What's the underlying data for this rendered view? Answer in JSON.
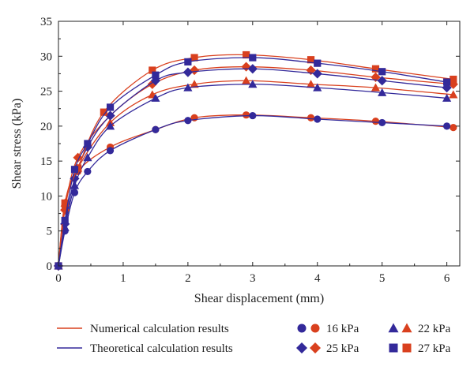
{
  "chart_data": {
    "type": "line",
    "xlabel": "Shear displacement (mm)",
    "ylabel": "Shear stress (kPa)",
    "xlim": [
      0,
      6.2
    ],
    "ylim": [
      0,
      35
    ],
    "xticks": [
      0,
      1,
      2,
      3,
      4,
      5,
      6
    ],
    "xtick_labels": [
      "0",
      "1",
      "2",
      "3",
      "4",
      "5",
      "6"
    ],
    "yticks": [
      0,
      5,
      10,
      15,
      20,
      25,
      30,
      35
    ],
    "ytick_labels": [
      "0",
      "5",
      "10",
      "15",
      "20",
      "25",
      "30",
      "35"
    ],
    "grid": false,
    "legend_placement": "bottom",
    "legend": {
      "numerical_label": "Numerical calculation results",
      "theoretical_label": "Theoretical calculation results",
      "loads": [
        {
          "label": "16 kPa",
          "marker": "circle"
        },
        {
          "label": "22 kPa",
          "marker": "triangle"
        },
        {
          "label": "25 kPa",
          "marker": "diamond"
        },
        {
          "label": "27 kPa",
          "marker": "square"
        }
      ]
    },
    "colors": {
      "numerical": "#d9401e",
      "theoretical": "#33299a"
    },
    "series": [
      {
        "name": "Numerical calculation results 16 kPa",
        "load": "16 kPa",
        "method": "numerical",
        "marker": "circle",
        "x": [
          0,
          0.1,
          0.3,
          0.8,
          1.5,
          2.1,
          2.9,
          3.9,
          4.9,
          6.1
        ],
        "y": [
          0,
          8.5,
          13.5,
          17.0,
          19.5,
          21.2,
          21.6,
          21.2,
          20.7,
          19.8
        ]
      },
      {
        "name": "Theoretical calculation results 16 kPa",
        "load": "16 kPa",
        "method": "theoretical",
        "marker": "circle",
        "x": [
          0,
          0.1,
          0.25,
          0.45,
          0.8,
          1.5,
          2.0,
          3.0,
          4.0,
          5.0,
          6.0
        ],
        "y": [
          0,
          5.0,
          10.5,
          13.5,
          16.5,
          19.5,
          20.8,
          21.5,
          21.0,
          20.5,
          20.0
        ]
      },
      {
        "name": "Numerical calculation results 22 kPa",
        "load": "22 kPa",
        "method": "numerical",
        "marker": "triangle",
        "x": [
          0,
          0.1,
          0.3,
          0.8,
          1.45,
          2.1,
          2.9,
          3.9,
          4.9,
          6.1
        ],
        "y": [
          0,
          9.0,
          14.0,
          20.5,
          24.5,
          26.0,
          26.5,
          26.0,
          25.5,
          24.5
        ]
      },
      {
        "name": "Theoretical calculation results 22 kPa",
        "load": "22 kPa",
        "method": "theoretical",
        "marker": "triangle",
        "x": [
          0,
          0.1,
          0.25,
          0.45,
          0.8,
          1.5,
          2.0,
          3.0,
          4.0,
          5.0,
          6.0
        ],
        "y": [
          0,
          5.5,
          11.5,
          15.5,
          20.0,
          24.0,
          25.5,
          26.0,
          25.5,
          24.8,
          24.0
        ]
      },
      {
        "name": "Numerical calculation results 25 kPa",
        "load": "25 kPa",
        "method": "numerical",
        "marker": "diamond",
        "x": [
          0,
          0.1,
          0.3,
          0.8,
          1.45,
          2.1,
          2.9,
          3.9,
          4.9,
          6.1
        ],
        "y": [
          0,
          8.0,
          15.5,
          21.5,
          26.0,
          28.0,
          28.5,
          28.0,
          27.0,
          26.0
        ]
      },
      {
        "name": "Theoretical calculation results 25 kPa",
        "load": "25 kPa",
        "method": "theoretical",
        "marker": "diamond",
        "x": [
          0,
          0.1,
          0.25,
          0.45,
          0.8,
          1.5,
          2.0,
          3.0,
          4.0,
          5.0,
          6.0
        ],
        "y": [
          0,
          6.0,
          12.5,
          17.0,
          21.5,
          26.5,
          27.7,
          28.2,
          27.5,
          26.5,
          25.5
        ]
      },
      {
        "name": "Numerical calculation results 27 kPa",
        "load": "27 kPa",
        "method": "numerical",
        "marker": "square",
        "x": [
          0,
          0.1,
          0.3,
          0.7,
          1.45,
          2.1,
          2.9,
          3.9,
          4.9,
          6.1
        ],
        "y": [
          0,
          9.0,
          14.0,
          22.0,
          28.0,
          29.8,
          30.2,
          29.5,
          28.2,
          26.7
        ]
      },
      {
        "name": "Theoretical calculation results 27 kPa",
        "load": "27 kPa",
        "method": "theoretical",
        "marker": "square",
        "x": [
          0,
          0.1,
          0.25,
          0.45,
          0.8,
          1.5,
          2.0,
          3.0,
          4.0,
          5.0,
          6.0
        ],
        "y": [
          0,
          6.5,
          13.8,
          17.5,
          22.7,
          27.3,
          29.2,
          29.8,
          29.0,
          27.8,
          26.3
        ]
      }
    ]
  }
}
